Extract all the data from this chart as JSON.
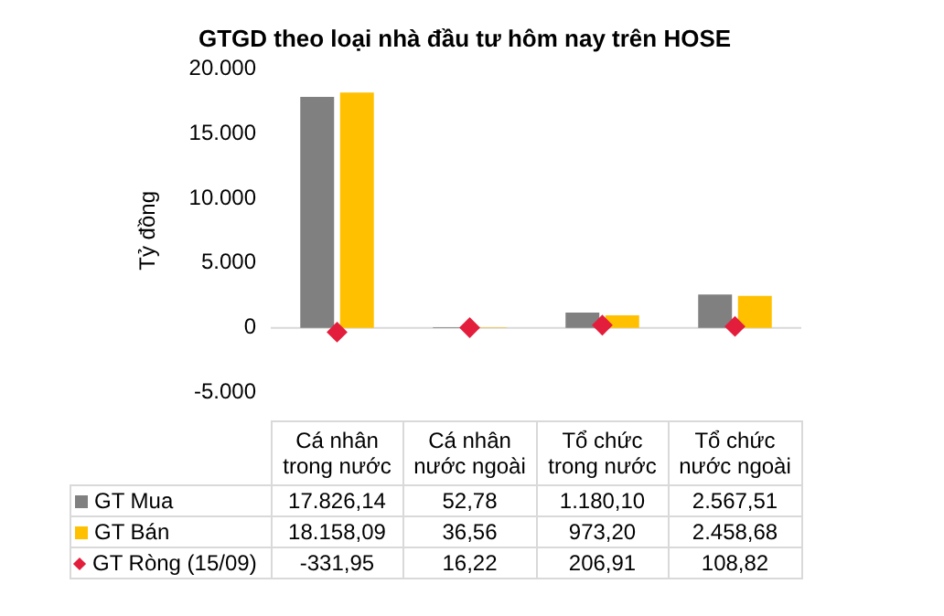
{
  "chart_data": {
    "type": "bar",
    "title": "GTGD theo loại nhà đầu tư hôm nay trên HOSE",
    "ylabel": "Tỷ đồng",
    "categories": [
      "Cá nhân trong nước",
      "Cá nhân nước ngoài",
      "Tổ chức trong nước",
      "Tổ chức nước ngoài"
    ],
    "series": [
      {
        "name": "GT Mua",
        "color": "#808080",
        "values": [
          17826.14,
          52.78,
          1180.1,
          2567.51
        ],
        "value_labels": [
          "17.826,14",
          "52,78",
          "1.180,10",
          "2.567,51"
        ]
      },
      {
        "name": "GT Bán",
        "color": "#ffc000",
        "values": [
          18158.09,
          36.56,
          973.2,
          2458.68
        ],
        "value_labels": [
          "18.158,09",
          "36,56",
          "973,20",
          "2.458,68"
        ]
      },
      {
        "name": "GT Ròng (15/09)",
        "type": "scatter",
        "marker": "diamond",
        "color": "#e31e3c",
        "values": [
          -331.95,
          16.22,
          206.91,
          108.82
        ],
        "value_labels": [
          "-331,95",
          "16,22",
          "206,91",
          "108,82"
        ]
      }
    ],
    "ylim": [
      -5000,
      20000
    ],
    "yticks": [
      {
        "value": -5000,
        "label": "-5.000"
      },
      {
        "value": 0,
        "label": "0"
      },
      {
        "value": 5000,
        "label": "5.000"
      },
      {
        "value": 10000,
        "label": "10.000"
      },
      {
        "value": 15000,
        "label": "15.000"
      },
      {
        "value": 20000,
        "label": "20.000"
      }
    ],
    "ref_lines": [
      {
        "axis": "y",
        "value": 0,
        "color": "#d9d9d9"
      }
    ],
    "grid": false,
    "legend": "bottom",
    "tick_labels": "y"
  }
}
